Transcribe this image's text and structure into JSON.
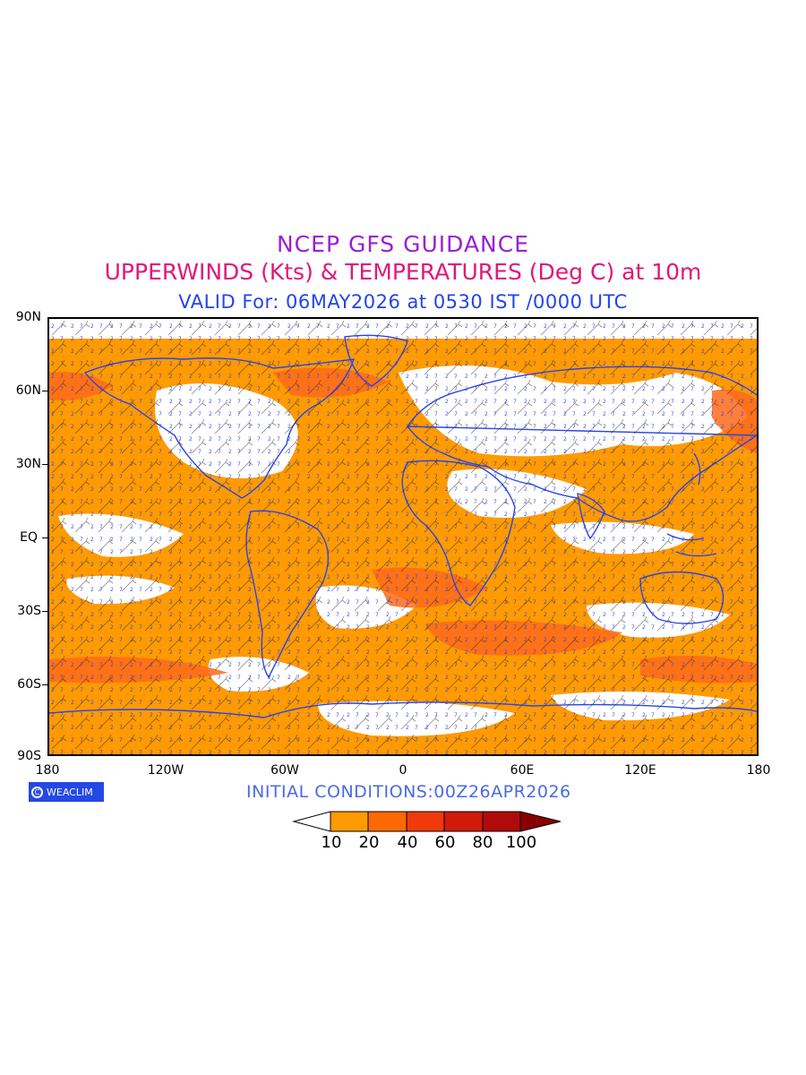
{
  "titles": {
    "line1": "NCEP GFS GUIDANCE",
    "line2": "UPPERWINDS (Kts) & TEMPERATURES (Deg C) at 10m",
    "line3": "VALID For: 06MAY2026 at 0530 IST /0000 UTC"
  },
  "axes": {
    "lat_labels": [
      "90N",
      "60N",
      "30N",
      "EQ",
      "30S",
      "60S",
      "90S"
    ],
    "lon_labels": [
      "180",
      "120W",
      "60W",
      "0",
      "60E",
      "120E",
      "180"
    ]
  },
  "footer": {
    "logo_text": "WEACLIM",
    "initial_conditions": "INITIAL CONDITIONS:00Z26APR2026"
  },
  "legend": {
    "labels": [
      "10",
      "20",
      "40",
      "60",
      "80",
      "100"
    ],
    "colors": [
      "#ffffff",
      "#ff9a00",
      "#ff6a00",
      "#f03a0a",
      "#d01a0a",
      "#b00a0a",
      "#8a0000"
    ]
  },
  "colors": {
    "orange_fill": "#ff9a00",
    "deep_orange": "#ff6a1a",
    "coast": "#2a44e6",
    "label_blue": "#2a44e6"
  }
}
